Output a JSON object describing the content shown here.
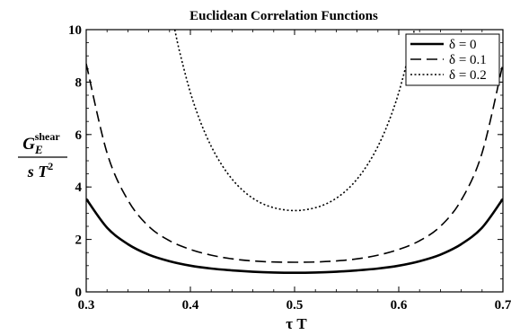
{
  "chart_data": {
    "type": "line",
    "title": "Euclidean Correlation Functions",
    "xlabel": "τ T",
    "ylabel": {
      "numerator_main": "G",
      "numerator_sub": "E",
      "numerator_sup": "shear",
      "denominator": "s T",
      "denominator_sup": "2"
    },
    "xlim": [
      0.3,
      0.7
    ],
    "ylim": [
      0,
      10
    ],
    "xticks": [
      0.3,
      0.4,
      0.5,
      0.6,
      0.7
    ],
    "xtick_labels": [
      "0.3",
      "0.4",
      "0.5",
      "0.6",
      "0.7"
    ],
    "yticks": [
      0,
      2,
      4,
      6,
      8,
      10
    ],
    "ytick_labels": [
      "0",
      "2",
      "4",
      "6",
      "8",
      "10"
    ],
    "grid": false,
    "legend_position": "top-right",
    "series": [
      {
        "name": "δ = 0",
        "style": "solid",
        "color": "#000000",
        "x": [
          0.3,
          0.32,
          0.34,
          0.36,
          0.38,
          0.4,
          0.42,
          0.44,
          0.46,
          0.48,
          0.5,
          0.52,
          0.54,
          0.56,
          0.58,
          0.6,
          0.62,
          0.64,
          0.66,
          0.68,
          0.7
        ],
        "values": [
          3.55,
          2.45,
          1.82,
          1.42,
          1.17,
          1.0,
          0.89,
          0.82,
          0.77,
          0.74,
          0.73,
          0.74,
          0.77,
          0.82,
          0.89,
          1.0,
          1.17,
          1.42,
          1.82,
          2.45,
          3.55
        ]
      },
      {
        "name": "δ = 0.1",
        "style": "dashed",
        "color": "#000000",
        "x": [
          0.3,
          0.32,
          0.34,
          0.36,
          0.38,
          0.4,
          0.42,
          0.44,
          0.46,
          0.48,
          0.5,
          0.52,
          0.54,
          0.56,
          0.58,
          0.6,
          0.62,
          0.64,
          0.66,
          0.68,
          0.7
        ],
        "values": [
          8.7,
          5.3,
          3.5,
          2.5,
          1.95,
          1.62,
          1.4,
          1.26,
          1.18,
          1.14,
          1.13,
          1.14,
          1.18,
          1.26,
          1.4,
          1.62,
          1.95,
          2.5,
          3.5,
          5.3,
          8.7
        ]
      },
      {
        "name": "δ = 0.2",
        "style": "dotted",
        "color": "#000000",
        "x": [
          0.385,
          0.39,
          0.4,
          0.41,
          0.42,
          0.43,
          0.44,
          0.45,
          0.46,
          0.47,
          0.48,
          0.49,
          0.5,
          0.51,
          0.52,
          0.53,
          0.54,
          0.55,
          0.56,
          0.57,
          0.58,
          0.59,
          0.6,
          0.61,
          0.615
        ],
        "values": [
          10.0,
          9.1,
          7.6,
          6.45,
          5.55,
          4.85,
          4.3,
          3.88,
          3.57,
          3.35,
          3.21,
          3.13,
          3.1,
          3.13,
          3.21,
          3.35,
          3.57,
          3.88,
          4.3,
          4.85,
          5.55,
          6.45,
          7.6,
          9.1,
          10.0
        ]
      }
    ]
  }
}
